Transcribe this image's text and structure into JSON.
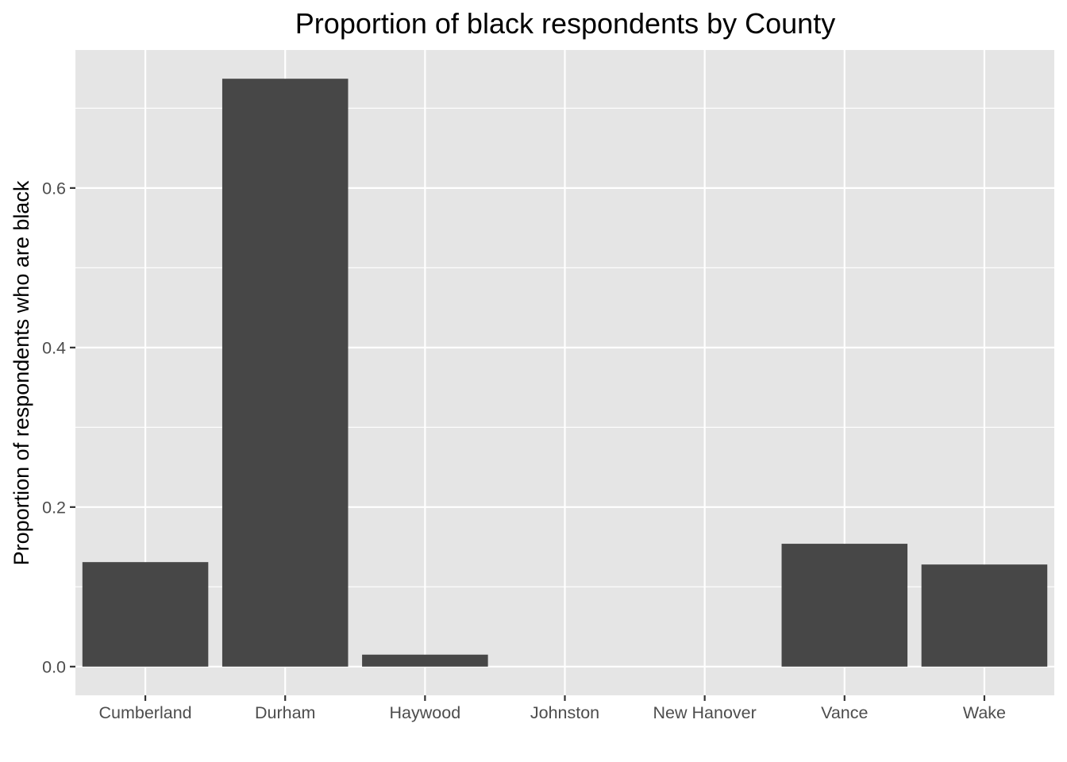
{
  "chart_data": {
    "type": "bar",
    "title": "Proportion of black respondents by County",
    "xlabel": "",
    "ylabel": "Proportion of respondents who are black",
    "categories": [
      "Cumberland",
      "Durham",
      "Haywood",
      "Johnston",
      "New Hanover",
      "Vance",
      "Wake"
    ],
    "values": [
      0.131,
      0.737,
      0.015,
      0.0,
      0.0,
      0.154,
      0.128
    ],
    "ylim": [
      -0.036,
      0.773
    ],
    "yticks": [
      0.0,
      0.2,
      0.4,
      0.6
    ],
    "ytick_labels": [
      "0.0",
      "0.2",
      "0.4",
      "0.6"
    ],
    "grid": true,
    "legend": "none",
    "colors": {
      "bar": "#474747",
      "panel": "#e5e5e5",
      "grid": "#ffffff",
      "tick_text": "#4d4d4d",
      "tick_mark": "#333333"
    }
  }
}
